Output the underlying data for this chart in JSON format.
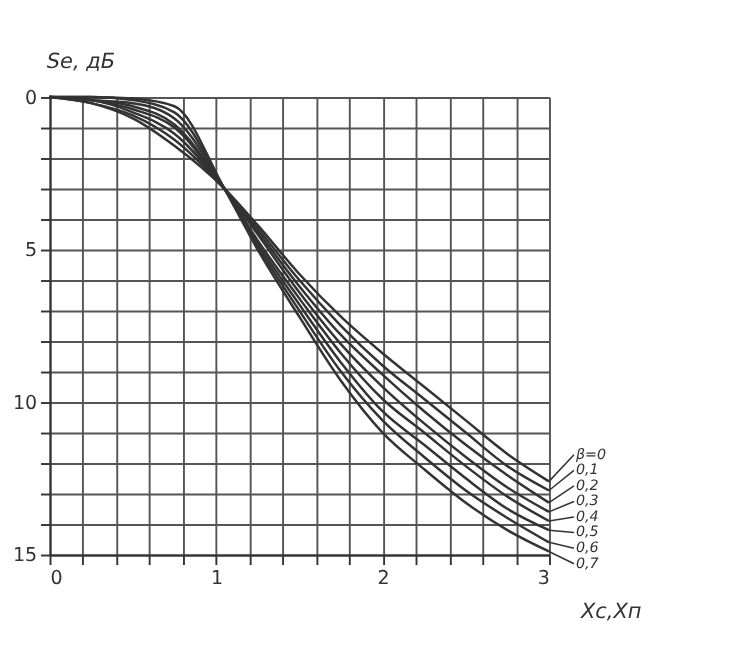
{
  "chart_data": {
    "type": "line",
    "xlabel": "Xc,Xп",
    "ylabel": "Se, дБ",
    "x": [
      0,
      0.25,
      0.5,
      0.75,
      1.05,
      1.25,
      1.5,
      1.75,
      2,
      2.25,
      2.5,
      2.75,
      3
    ],
    "series": [
      {
        "name": "β=0",
        "color": "#333333",
        "values": [
          0,
          0.2,
          0.7,
          1.6,
          3.0,
          4.2,
          5.8,
          7.2,
          8.4,
          9.5,
          10.6,
          11.7,
          12.6
        ]
      },
      {
        "name": "0,1",
        "color": "#333333",
        "values": [
          0,
          0.2,
          0.6,
          1.4,
          3.0,
          4.3,
          6.0,
          7.5,
          8.8,
          9.9,
          11.0,
          12.1,
          12.9
        ]
      },
      {
        "name": "0,2",
        "color": "#333333",
        "values": [
          0,
          0.1,
          0.5,
          1.2,
          3.0,
          4.4,
          6.2,
          7.8,
          9.1,
          10.3,
          11.4,
          12.4,
          13.3
        ]
      },
      {
        "name": "0,3",
        "color": "#333333",
        "values": [
          0,
          0.1,
          0.4,
          1.0,
          3.0,
          4.5,
          6.4,
          8.1,
          9.5,
          10.7,
          11.8,
          12.8,
          13.6
        ]
      },
      {
        "name": "0,4",
        "color": "#333333",
        "values": [
          0,
          0.1,
          0.3,
          0.9,
          3.0,
          4.7,
          6.6,
          8.4,
          9.9,
          11.0,
          12.1,
          13.1,
          13.9
        ]
      },
      {
        "name": "0,5",
        "color": "#333333",
        "values": [
          0,
          0.1,
          0.2,
          0.7,
          3.0,
          4.8,
          6.8,
          8.7,
          10.3,
          11.4,
          12.5,
          13.5,
          14.2
        ]
      },
      {
        "name": "0,6",
        "color": "#333333",
        "values": [
          0,
          0,
          0.1,
          0.5,
          3.0,
          4.9,
          7.0,
          9.0,
          10.6,
          11.8,
          12.9,
          13.8,
          14.6
        ]
      },
      {
        "name": "0,7",
        "color": "#333333",
        "values": [
          0,
          0,
          0.05,
          0.3,
          3.0,
          5.0,
          7.2,
          9.3,
          11.0,
          12.2,
          13.3,
          14.2,
          14.9
        ]
      }
    ],
    "xlim": [
      0,
      3
    ],
    "xticks": [
      0,
      {
        "value": 0.2,
        "label": null
      },
      {
        "value": 0.4,
        "label": null
      },
      {
        "value": 0.6,
        "label": null
      },
      {
        "value": 0.8,
        "label": null
      },
      1,
      {
        "value": 1.2,
        "label": null
      },
      {
        "value": 1.4,
        "label": null
      },
      {
        "value": 1.6,
        "label": null
      },
      {
        "value": 1.8,
        "label": null
      },
      2,
      {
        "value": 2.2,
        "label": null
      },
      {
        "value": 2.4,
        "label": null
      },
      {
        "value": 2.6,
        "label": null
      },
      {
        "value": 2.8,
        "label": null
      },
      3
    ],
    "ylim": [
      15,
      0
    ],
    "yticks": [
      0,
      {
        "value": 1,
        "label": null
      },
      {
        "value": 2,
        "label": null
      },
      {
        "value": 3,
        "label": null
      },
      {
        "value": 4,
        "label": null
      },
      5,
      {
        "value": 6,
        "label": null
      },
      {
        "value": 7,
        "label": null
      },
      {
        "value": 8,
        "label": null
      },
      {
        "value": 9,
        "label": null
      },
      10,
      {
        "value": 11,
        "label": null
      },
      {
        "value": 12,
        "label": null
      },
      {
        "value": 13,
        "label": null
      },
      {
        "value": 14,
        "label": null
      },
      15
    ],
    "grid": true,
    "legend": "right",
    "marker": "none",
    "line_style": "solid"
  }
}
